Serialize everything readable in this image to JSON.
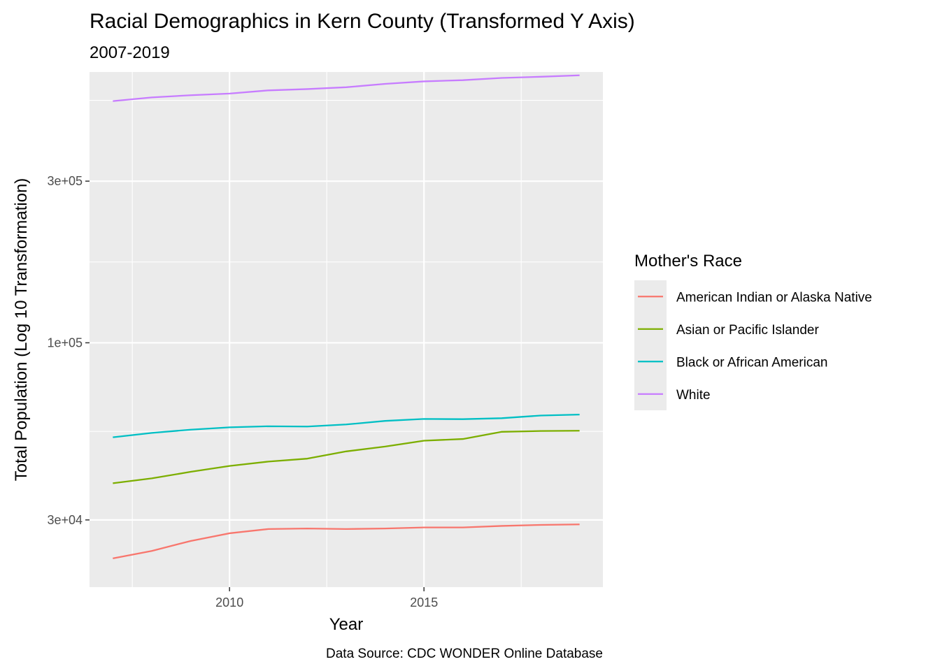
{
  "chart_data": {
    "type": "line",
    "title": "Racial Demographics in Kern County (Transformed Y Axis)",
    "subtitle": "2007-2019",
    "xlabel": "Year",
    "ylabel": "Total Population (Log 10 Transformation)",
    "caption": "Data Source: CDC WONDER Online Database",
    "x": [
      2007,
      2008,
      2009,
      2010,
      2011,
      2012,
      2013,
      2014,
      2015,
      2016,
      2017,
      2018,
      2019
    ],
    "xlim": [
      2006.4,
      2019.6
    ],
    "xticks": [
      2010,
      2015
    ],
    "xtick_labels": [
      "2010",
      "2015"
    ],
    "y_scale": "log10",
    "ylim": [
      19000,
      630000
    ],
    "yticks": [
      30000,
      100000,
      300000
    ],
    "ytick_labels": [
      "3e+04",
      "1e+05",
      "3e+05"
    ],
    "grid": true,
    "legend": {
      "title": "Mother's Race",
      "position": "right"
    },
    "series": [
      {
        "name": "American Indian or Alaska Native",
        "color": "#F8766D",
        "values": [
          23100,
          24300,
          26000,
          27400,
          28200,
          28300,
          28200,
          28300,
          28500,
          28500,
          28800,
          29000,
          29100
        ]
      },
      {
        "name": "Asian or Pacific Islander",
        "color": "#7CAE00",
        "values": [
          38500,
          39800,
          41600,
          43300,
          44600,
          45500,
          47800,
          49400,
          51400,
          52000,
          54600,
          54900,
          55000
        ]
      },
      {
        "name": "Black or African American",
        "color": "#00BFC4",
        "values": [
          52600,
          54200,
          55400,
          56300,
          56700,
          56600,
          57400,
          58800,
          59600,
          59500,
          59900,
          61000,
          61400
        ]
      },
      {
        "name": "White",
        "color": "#C77CFF",
        "values": [
          517000,
          530000,
          538000,
          544000,
          556000,
          561000,
          568000,
          581000,
          591000,
          596000,
          605000,
          610000,
          616000
        ]
      }
    ]
  }
}
